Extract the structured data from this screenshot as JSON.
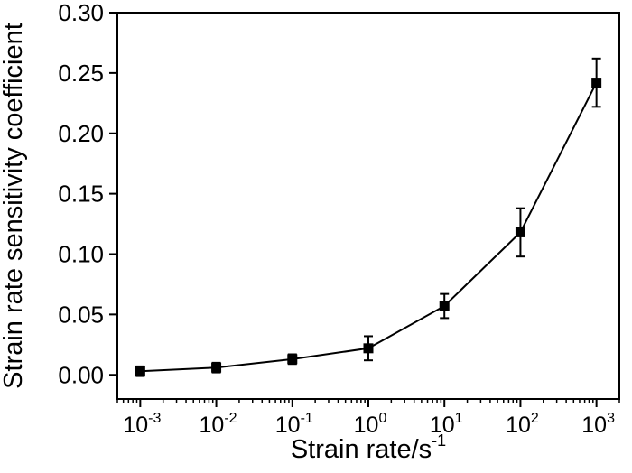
{
  "chart_data": {
    "type": "line",
    "xlabel": "Strain rate/s",
    "xlabel_exponent": "-1",
    "ylabel": "Strain rate sensitivity coefficient",
    "x_scale": "log",
    "xlim": [
      0.0005,
      2000
    ],
    "ylim": [
      -0.02,
      0.3
    ],
    "grid": false,
    "legend": "none",
    "x_ticks": [
      {
        "value": 0.001,
        "base": "10",
        "exp": "-3"
      },
      {
        "value": 0.01,
        "base": "10",
        "exp": "-2"
      },
      {
        "value": 0.1,
        "base": "10",
        "exp": "-1"
      },
      {
        "value": 1,
        "base": "10",
        "exp": "0"
      },
      {
        "value": 10,
        "base": "10",
        "exp": "1"
      },
      {
        "value": 100,
        "base": "10",
        "exp": "2"
      },
      {
        "value": 1000,
        "base": "10",
        "exp": "3"
      }
    ],
    "y_ticks": [
      "0.00",
      "0.05",
      "0.10",
      "0.15",
      "0.20",
      "0.25",
      "0.30"
    ],
    "series": [
      {
        "marker": "square",
        "color": "#000000",
        "x": [
          0.001,
          0.01,
          0.1,
          1,
          10,
          100,
          1000
        ],
        "y": [
          0.003,
          0.006,
          0.013,
          0.022,
          0.057,
          0.118,
          0.242
        ],
        "error": [
          0.004,
          0.004,
          0.004,
          0.01,
          0.01,
          0.02,
          0.02
        ]
      }
    ]
  }
}
